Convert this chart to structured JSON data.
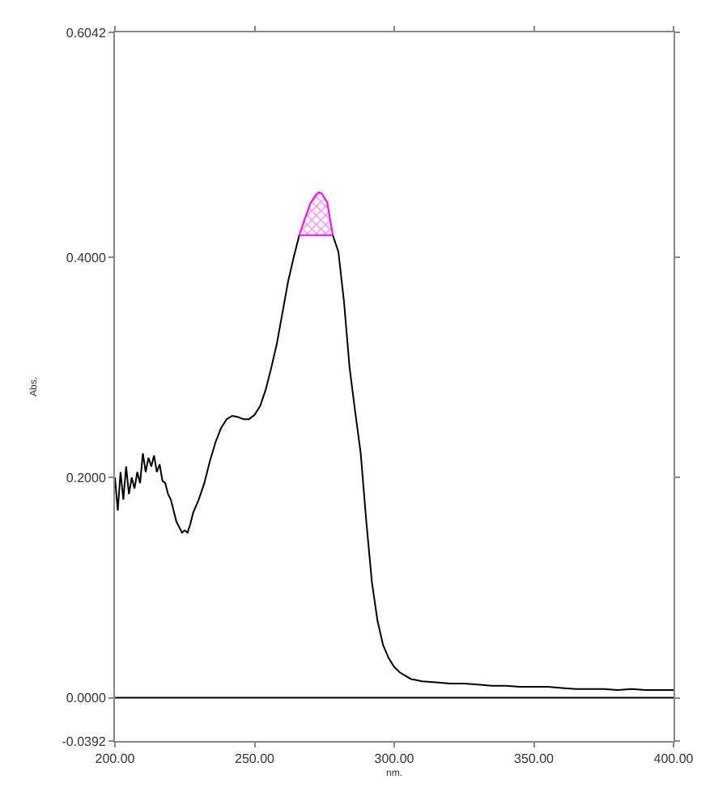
{
  "chart_data": {
    "type": "line",
    "xlabel": "nm.",
    "ylabel": "Abs.",
    "xlim": [
      200,
      400
    ],
    "xticks": [
      {
        "value": 200,
        "label": "200.00"
      },
      {
        "value": 250,
        "label": "250.00"
      },
      {
        "value": 300,
        "label": "300.00"
      },
      {
        "value": 350,
        "label": "350.00"
      },
      {
        "value": 400,
        "label": "400.00"
      }
    ],
    "ylim": [
      -0.0392,
      0.6042
    ],
    "yticks": [
      {
        "value": -0.0392,
        "label": "-0.0392"
      },
      {
        "value": 0,
        "label": "0.0000"
      },
      {
        "value": 0.2,
        "label": "0.2000"
      },
      {
        "value": 0.4,
        "label": "0.4000"
      },
      {
        "value": 0.6042,
        "label": "0.6042"
      }
    ],
    "grid": false,
    "marker": "none",
    "line_style": "solid",
    "ref_lines": [
      {
        "axis": "y",
        "value": 0,
        "color": "#000000"
      }
    ],
    "series": [
      {
        "color": "#000000",
        "x": [
          200,
          201,
          202,
          203,
          204,
          205,
          206,
          207,
          208,
          209,
          210,
          211,
          212,
          213,
          214,
          215,
          216,
          217,
          218,
          219,
          220,
          221,
          222,
          223,
          224,
          225,
          226,
          227,
          228,
          230,
          232,
          234,
          236,
          238,
          240,
          242,
          244,
          246,
          248,
          250,
          252,
          254,
          256,
          258,
          260,
          262,
          264,
          266,
          268,
          270,
          272,
          273,
          274,
          276,
          278,
          280,
          282,
          284,
          286,
          288,
          290,
          292,
          294,
          296,
          298,
          300,
          302,
          304,
          306,
          308,
          310,
          315,
          320,
          325,
          330,
          335,
          340,
          345,
          350,
          355,
          360,
          365,
          370,
          375,
          380,
          385,
          390,
          395,
          400
        ],
        "values": [
          0.2,
          0.17,
          0.205,
          0.18,
          0.21,
          0.185,
          0.2,
          0.19,
          0.205,
          0.195,
          0.222,
          0.205,
          0.218,
          0.21,
          0.22,
          0.205,
          0.212,
          0.197,
          0.195,
          0.185,
          0.18,
          0.17,
          0.16,
          0.155,
          0.15,
          0.152,
          0.15,
          0.158,
          0.168,
          0.18,
          0.195,
          0.215,
          0.232,
          0.245,
          0.253,
          0.256,
          0.255,
          0.253,
          0.253,
          0.257,
          0.265,
          0.28,
          0.3,
          0.322,
          0.35,
          0.378,
          0.4,
          0.42,
          null,
          null,
          null,
          null,
          null,
          null,
          0.42,
          0.405,
          0.36,
          0.3,
          0.26,
          0.222,
          0.16,
          0.105,
          0.07,
          0.048,
          0.036,
          0.028,
          0.023,
          0.02,
          0.017,
          0.016,
          0.015,
          0.014,
          0.013,
          0.013,
          0.012,
          0.011,
          0.011,
          0.01,
          0.01,
          0.01,
          0.009,
          0.008,
          0.008,
          0.008,
          0.007,
          0.008,
          0.007,
          0.007,
          0.007
        ]
      },
      {
        "type": "line",
        "color": "#ff00ff",
        "x": [
          266,
          268,
          270,
          272,
          273,
          274,
          276,
          278
        ],
        "values": [
          0.42,
          0.435,
          0.449,
          0.457,
          0.459,
          0.458,
          0.45,
          0.42
        ],
        "lower": [
          0.42,
          0.42,
          0.42,
          0.42,
          0.42,
          0.42,
          0.42,
          0.42
        ],
        "upper": [
          0.42,
          0.435,
          0.449,
          0.457,
          0.459,
          0.458,
          0.45,
          0.42
        ]
      },
      {
        "type": "line",
        "color": "#ff00ff",
        "x": [
          266,
          278
        ],
        "values": [
          0.42,
          0.42
        ]
      }
    ]
  }
}
